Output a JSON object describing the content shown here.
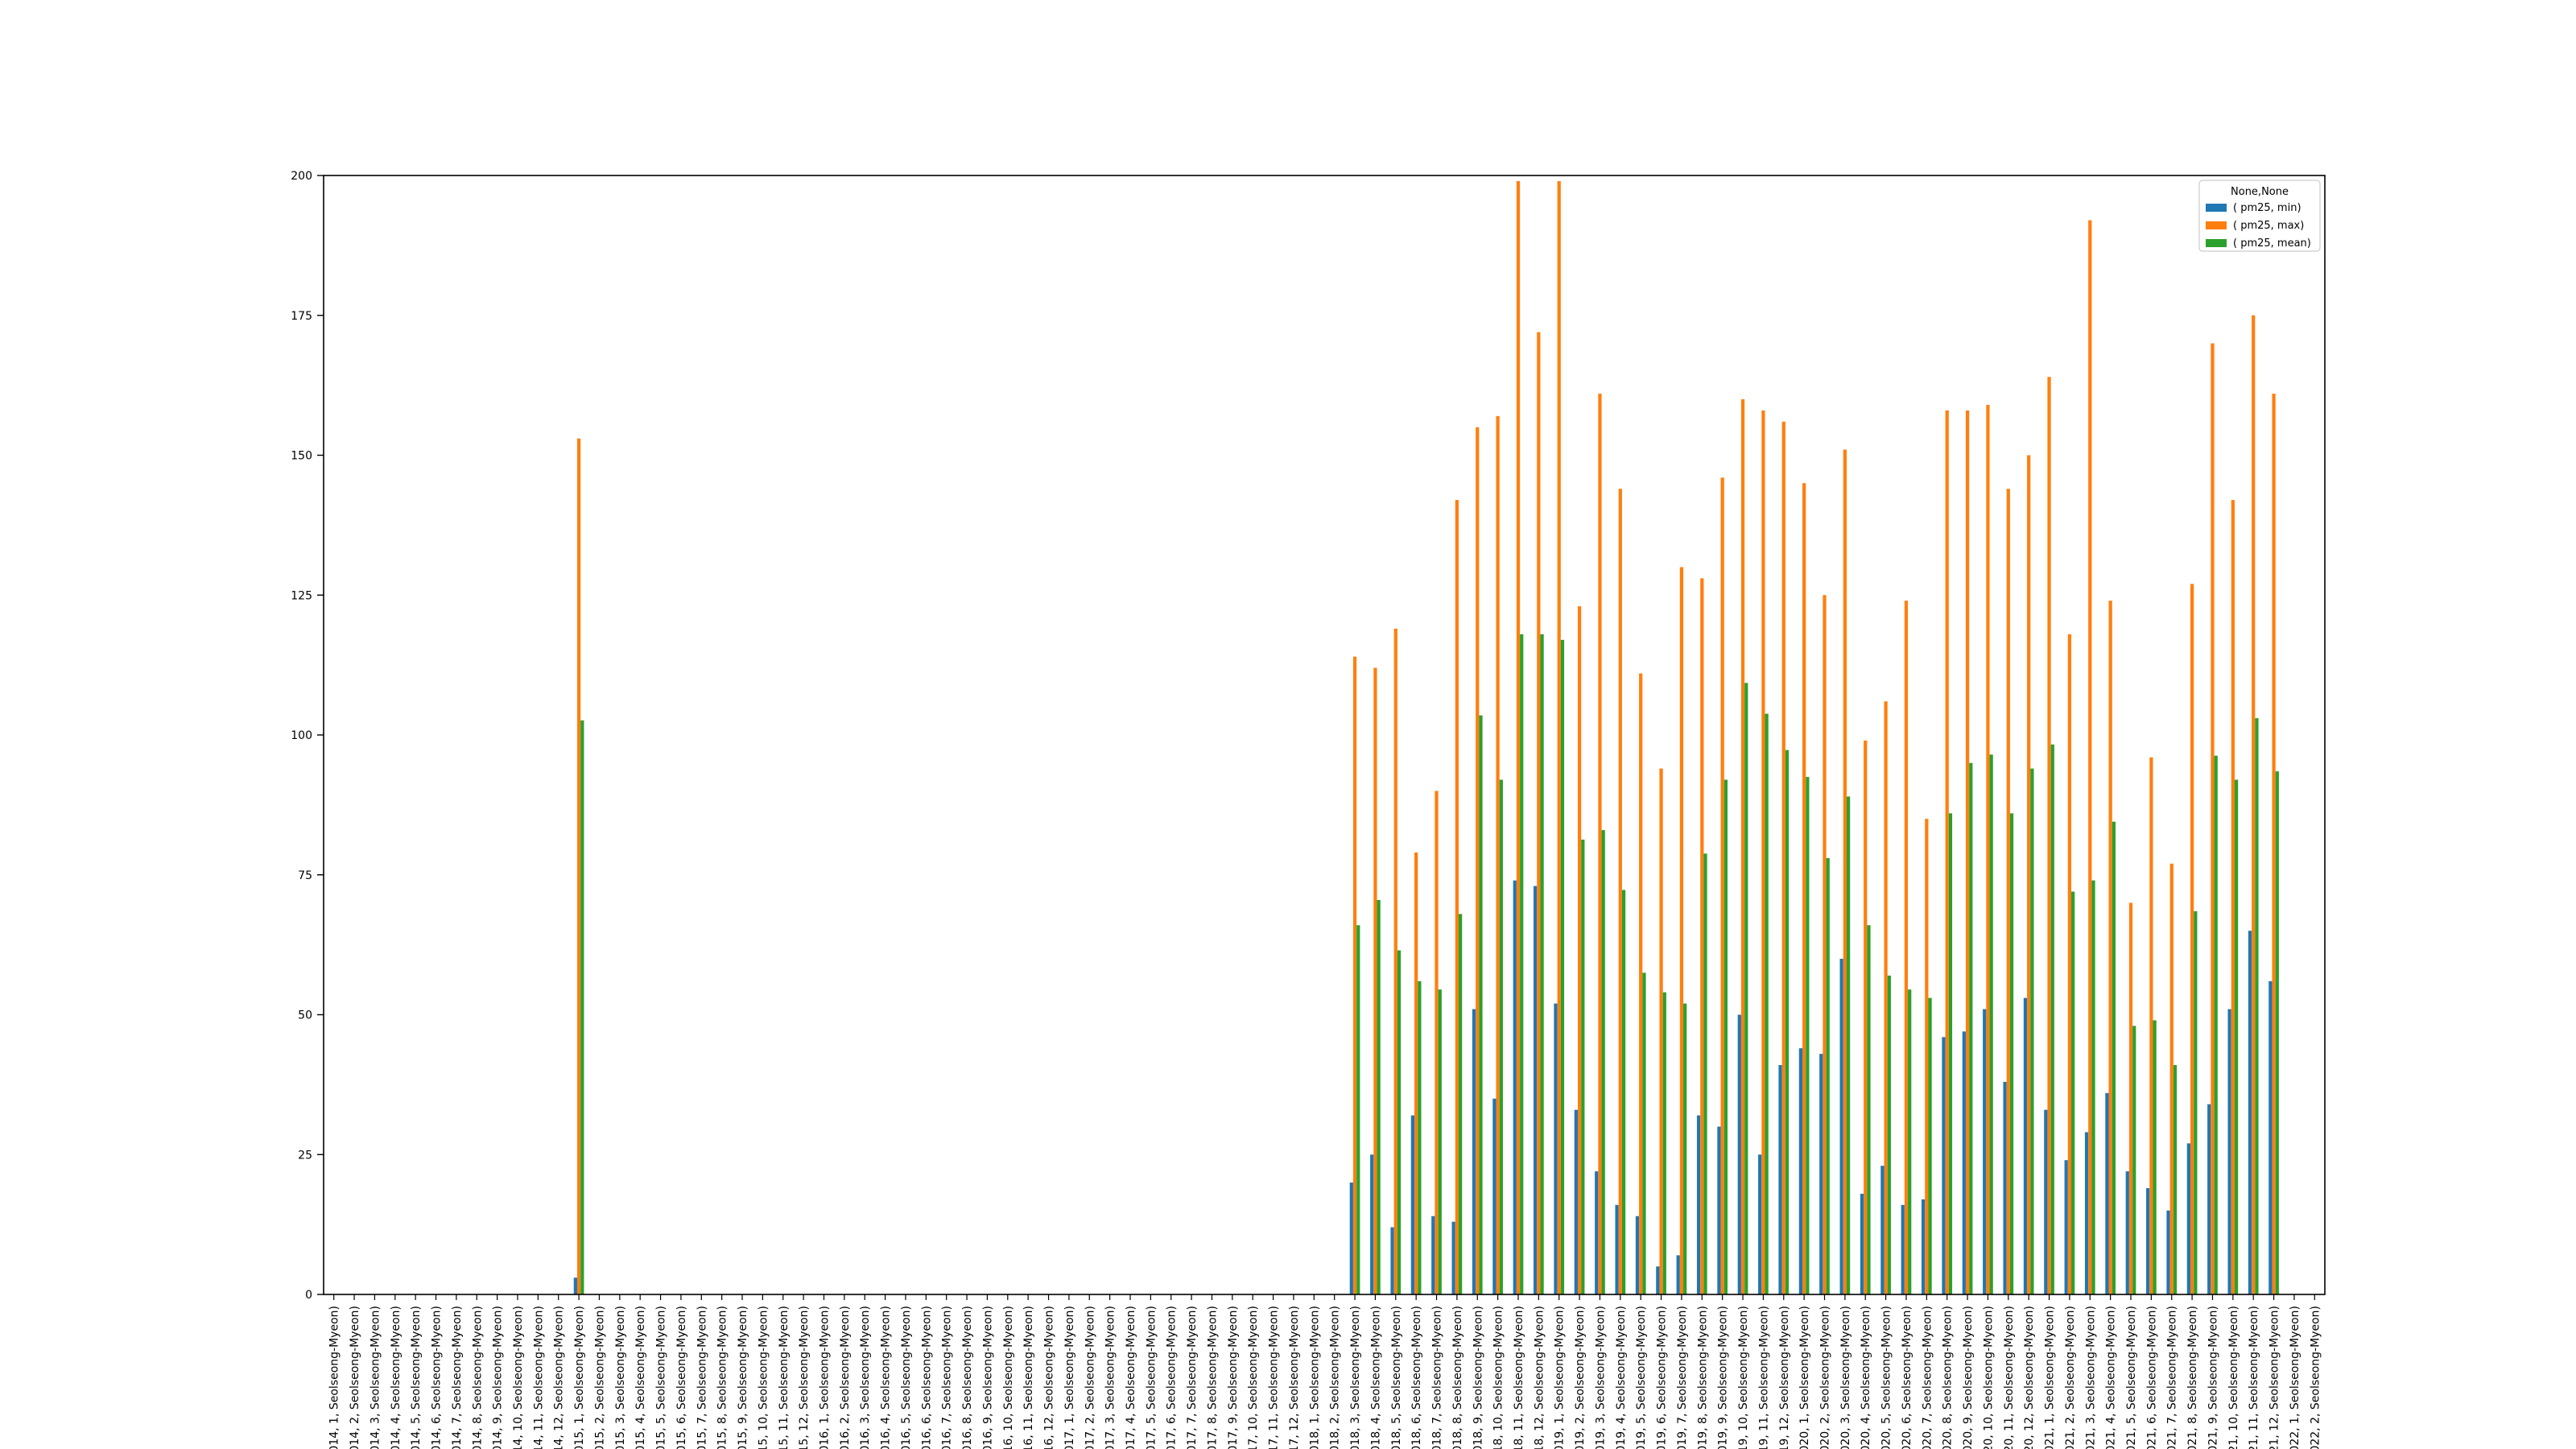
{
  "chart_data": {
    "type": "bar",
    "legend": {
      "title": "None,None",
      "placement": "top-right"
    },
    "series": [
      {
        "name": "( pm25, min)",
        "color": "#1f77b4",
        "values": [
          null,
          null,
          null,
          null,
          null,
          null,
          null,
          null,
          null,
          null,
          null,
          null,
          3,
          null,
          null,
          null,
          null,
          null,
          null,
          null,
          null,
          null,
          null,
          null,
          null,
          null,
          null,
          null,
          null,
          null,
          null,
          null,
          null,
          null,
          null,
          null,
          null,
          null,
          null,
          null,
          null,
          null,
          null,
          null,
          null,
          null,
          null,
          null,
          null,
          null,
          20,
          25,
          12,
          32,
          14,
          13,
          51,
          35,
          74,
          73,
          52,
          33,
          22,
          16,
          14,
          5,
          7,
          32,
          30,
          50,
          25,
          41,
          44,
          43,
          60,
          18,
          23,
          16,
          17,
          46,
          47,
          51,
          38,
          53,
          33,
          24,
          29,
          36,
          22,
          19,
          15,
          27,
          34,
          51,
          65,
          56
        ]
      },
      {
        "name": "( pm25, max)",
        "color": "#ff7f0e",
        "values": [
          null,
          null,
          null,
          null,
          null,
          null,
          null,
          null,
          null,
          null,
          null,
          null,
          153,
          null,
          null,
          null,
          null,
          null,
          null,
          null,
          null,
          null,
          null,
          null,
          null,
          null,
          null,
          null,
          null,
          null,
          null,
          null,
          null,
          null,
          null,
          null,
          null,
          null,
          null,
          null,
          null,
          null,
          null,
          null,
          null,
          null,
          null,
          null,
          null,
          null,
          114,
          112,
          119,
          79,
          90,
          142,
          155,
          157,
          199,
          172,
          199,
          123,
          161,
          144,
          111,
          94,
          130,
          128,
          146,
          160,
          158,
          156,
          145,
          125,
          151,
          99,
          106,
          124,
          85,
          158,
          158,
          159,
          144,
          150,
          164,
          118,
          192,
          124,
          70,
          96,
          77,
          127,
          170,
          142,
          175,
          161
        ]
      },
      {
        "name": "( pm25, mean)",
        "color": "#2ca02c",
        "values": [
          null,
          null,
          null,
          null,
          null,
          null,
          null,
          null,
          null,
          null,
          null,
          null,
          102.6,
          null,
          null,
          null,
          null,
          null,
          null,
          null,
          null,
          null,
          null,
          null,
          null,
          null,
          null,
          null,
          null,
          null,
          null,
          null,
          null,
          null,
          null,
          null,
          null,
          null,
          null,
          null,
          null,
          null,
          null,
          null,
          null,
          null,
          null,
          null,
          null,
          null,
          66,
          70.5,
          61.5,
          56,
          54.5,
          68,
          103.5,
          92,
          118,
          118,
          117,
          81.3,
          83,
          72.3,
          57.5,
          54,
          52,
          78.8,
          92,
          109.3,
          103.8,
          97.3,
          92.5,
          78,
          89,
          66,
          57,
          54.5,
          53,
          86,
          95,
          96.5,
          86,
          94,
          98.3,
          72,
          74,
          84.5,
          48,
          49,
          41,
          68.5,
          96.3,
          92,
          103,
          93.5
        ]
      }
    ],
    "yaxis": {
      "ylim": [
        0,
        200
      ],
      "ticks": [
        "0",
        "25",
        "50",
        "75",
        "100",
        "125",
        "150",
        "175",
        "200"
      ]
    },
    "grid": false
  }
}
